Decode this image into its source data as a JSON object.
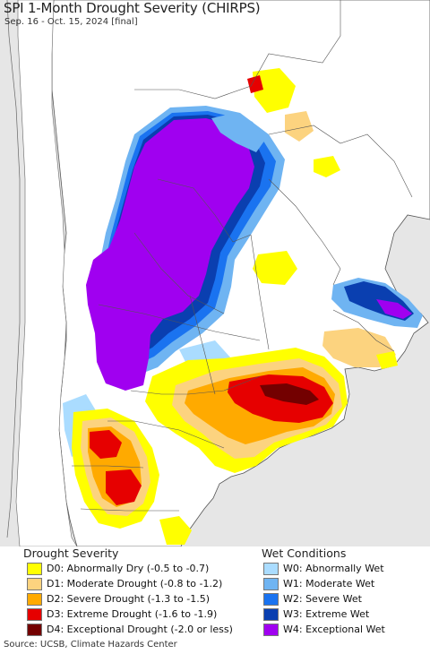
{
  "title": "SPI 1-Month Drought Severity (CHIRPS)",
  "subtitle": "Sep. 16 - Oct. 15, 2024 [final]",
  "legend": {
    "drought": {
      "heading": "Drought Severity",
      "items": [
        {
          "label": "D0: Abnormally Dry (-0.5 to -0.7)",
          "color": "#ffff00"
        },
        {
          "label": "D1: Moderate Drought (-0.8 to -1.2)",
          "color": "#fcd37f"
        },
        {
          "label": "D2: Severe Drought (-1.3 to -1.5)",
          "color": "#ffaa00"
        },
        {
          "label": "D3: Extreme Drought (-1.6 to -1.9)",
          "color": "#e60000"
        },
        {
          "label": "D4: Exceptional Drought (-2.0 or less)",
          "color": "#730000"
        }
      ]
    },
    "wet": {
      "heading": "Wet Conditions",
      "items": [
        {
          "label": "W0: Abnormally Wet",
          "color": "#aadcff"
        },
        {
          "label": "W1: Moderate Wet",
          "color": "#6fb4f2"
        },
        {
          "label": "W2: Severe Wet",
          "color": "#1a73f0"
        },
        {
          "label": "W3: Extreme Wet",
          "color": "#0a3fb0"
        },
        {
          "label": "W4: Exceptional Wet",
          "color": "#a000f0"
        }
      ]
    }
  },
  "source": "Source: UCSB, Climate Hazards Center",
  "map_colors": {
    "land": "#ffffff",
    "outside": "#e6e6e6",
    "borders": "#555555"
  }
}
